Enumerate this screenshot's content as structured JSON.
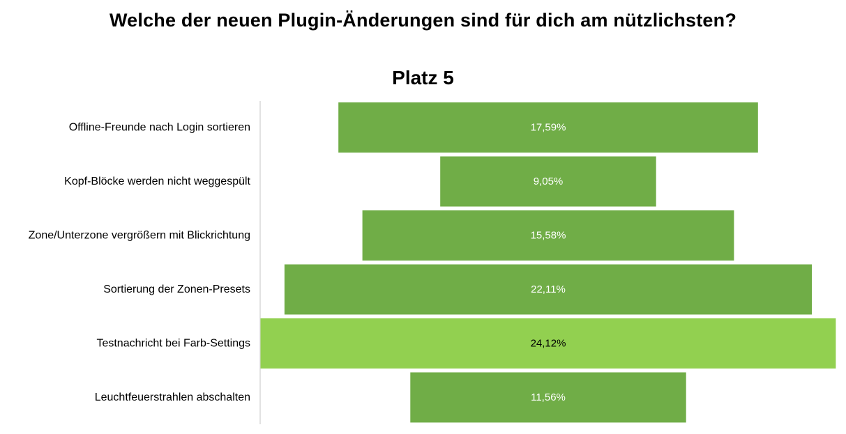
{
  "chart_data": {
    "type": "bar",
    "title": "Welche der neuen Plugin-Änderungen sind für dich am nützlichsten?",
    "subtitle": "Platz 5",
    "categories": [
      "Offline-Freunde nach Login sortieren",
      "Kopf-Blöcke werden nicht weggespült",
      "Zone/Unterzone vergrößern mit Blickrichtung",
      "Sortierung der Zonen-Presets",
      "Testnachricht bei Farb-Settings",
      "Leuchtfeuerstrahlen abschalten"
    ],
    "values": [
      17.59,
      9.05,
      15.58,
      22.11,
      24.12,
      11.56
    ],
    "value_labels": [
      "17,59%",
      "9,05%",
      "15,58%",
      "22,11%",
      "24,12%",
      "11,56%"
    ],
    "orientation": "horizontal",
    "alignment": "centered",
    "highlight_index": 4,
    "grid": false,
    "legend": "none",
    "colors": {
      "bar": "#70ad47",
      "highlight": "#92d050",
      "axis": "#d9d9d9",
      "label_text": "#ffffff",
      "highlight_label_text": "#000000"
    }
  }
}
